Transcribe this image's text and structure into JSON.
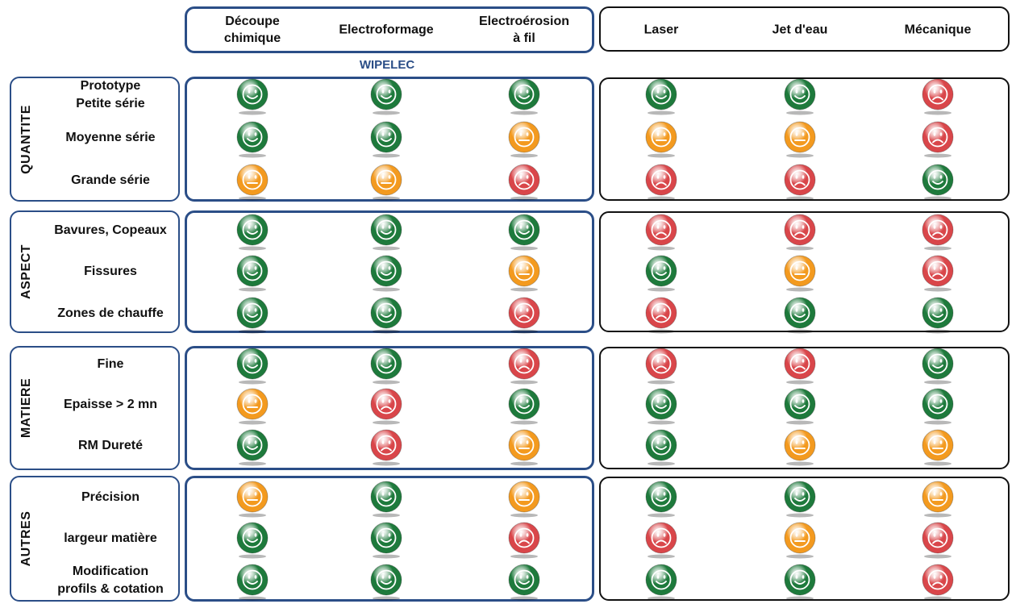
{
  "colors": {
    "good": "#1e7a3c",
    "medium": "#f39a1f",
    "bad": "#d9464a",
    "frame_blue": "#2b4e87"
  },
  "columns": [
    {
      "label": "Découpe\nchimique"
    },
    {
      "label": "Electroformage"
    },
    {
      "label": "Electroérosion\nà fil"
    },
    {
      "label": "Laser"
    },
    {
      "label": "Jet d'eau"
    },
    {
      "label": "Mécanique"
    }
  ],
  "brand_label": "WIPELEC",
  "categories": [
    {
      "label": "QUANTITE",
      "rows": [
        {
          "label": "Prototype\nPetite série",
          "ratings": [
            "good",
            "good",
            "good",
            "good",
            "good",
            "bad"
          ]
        },
        {
          "label": "Moyenne série",
          "ratings": [
            "good",
            "good",
            "medium",
            "medium",
            "medium",
            "bad"
          ]
        },
        {
          "label": "Grande série",
          "ratings": [
            "medium",
            "medium",
            "bad",
            "bad",
            "bad",
            "good"
          ]
        }
      ]
    },
    {
      "label": "ASPECT",
      "rows": [
        {
          "label": "Bavures, Copeaux",
          "ratings": [
            "good",
            "good",
            "good",
            "bad",
            "bad",
            "bad"
          ]
        },
        {
          "label": "Fissures",
          "ratings": [
            "good",
            "good",
            "medium",
            "good",
            "medium",
            "bad"
          ]
        },
        {
          "label": "Zones de chauffe",
          "ratings": [
            "good",
            "good",
            "bad",
            "bad",
            "good",
            "good"
          ]
        }
      ]
    },
    {
      "label": "MATIERE",
      "rows": [
        {
          "label": "Fine",
          "ratings": [
            "good",
            "good",
            "bad",
            "bad",
            "bad",
            "good"
          ]
        },
        {
          "label": "Epaisse > 2 mn",
          "ratings": [
            "medium",
            "bad",
            "good",
            "good",
            "good",
            "good"
          ]
        },
        {
          "label": "RM Dureté",
          "ratings": [
            "good",
            "bad",
            "medium",
            "good",
            "medium",
            "medium"
          ]
        }
      ]
    },
    {
      "label": "AUTRES",
      "rows": [
        {
          "label": "Précision",
          "ratings": [
            "medium",
            "good",
            "medium",
            "good",
            "good",
            "medium"
          ]
        },
        {
          "label": "largeur matière",
          "ratings": [
            "good",
            "good",
            "bad",
            "bad",
            "medium",
            "bad"
          ]
        },
        {
          "label": "Modification\nprofils &  cotation",
          "ratings": [
            "good",
            "good",
            "good",
            "good",
            "good",
            "bad"
          ]
        }
      ]
    }
  ]
}
